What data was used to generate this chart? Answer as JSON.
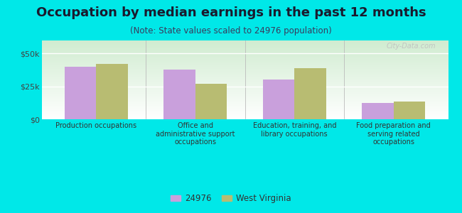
{
  "title": "Occupation by median earnings in the past 12 months",
  "subtitle": "(Note: State values scaled to 24976 population)",
  "categories": [
    "Production occupations",
    "Office and\nadministrative support\noccupations",
    "Education, training, and\nlibrary occupations",
    "Food preparation and\nserving related\noccupations"
  ],
  "values_24976": [
    40000,
    38000,
    30000,
    12500
  ],
  "values_wv": [
    42000,
    27000,
    39000,
    13500
  ],
  "bar_color_24976": "#c9a0dc",
  "bar_color_wv": "#b8bc72",
  "background_outer": "#00e8e8",
  "ylim": [
    0,
    60000
  ],
  "yticks": [
    0,
    25000,
    50000
  ],
  "ytick_labels": [
    "$0",
    "$25k",
    "$50k"
  ],
  "legend_label_24976": "24976",
  "legend_label_wv": "West Virginia",
  "watermark": "City-Data.com",
  "title_fontsize": 13,
  "subtitle_fontsize": 8.5,
  "title_color": "#1a1a2e",
  "subtitle_color": "#3a3a5c",
  "bar_width": 0.32
}
